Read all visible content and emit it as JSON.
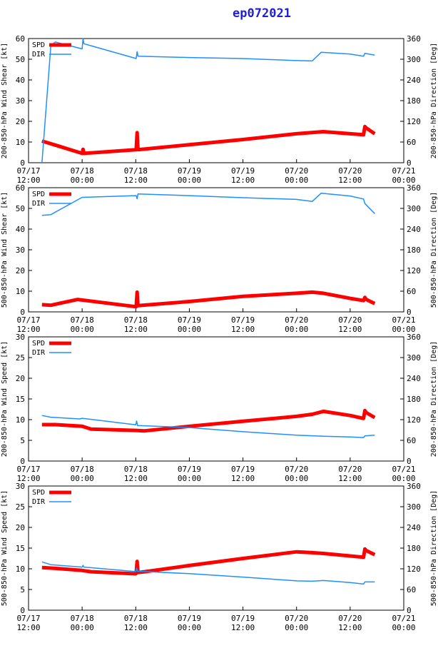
{
  "title": "ep072021",
  "colors": {
    "spd": "#ff0000",
    "dir": "#1e90ff",
    "title": "#1f1fd6",
    "axis": "#000000"
  },
  "x_ticks": [
    {
      "t": 0,
      "day": "07/17",
      "time": "12:00"
    },
    {
      "t": 12,
      "day": "07/18",
      "time": "00:00"
    },
    {
      "t": 24,
      "day": "07/18",
      "time": "12:00"
    },
    {
      "t": 36,
      "day": "07/19",
      "time": "00:00"
    },
    {
      "t": 48,
      "day": "07/19",
      "time": "12:00"
    },
    {
      "t": 60,
      "day": "07/20",
      "time": "00:00"
    },
    {
      "t": 72,
      "day": "07/20",
      "time": "12:00"
    },
    {
      "t": 84,
      "day": "07/21",
      "time": "00:00"
    }
  ],
  "legend": {
    "spd": "SPD",
    "dir": "DIR"
  },
  "chart_data": [
    {
      "type": "line",
      "x_unit": "hours since 07/17 12:00",
      "xlim": [
        0,
        84
      ],
      "ylabel": "200-850-hPa Wind Shear [kt]",
      "ylim": [
        0,
        60
      ],
      "yticks": [
        0,
        10,
        20,
        30,
        40,
        50,
        60
      ],
      "y2label": "200-850-hPa Direction [Deg]",
      "y2lim": [
        0,
        360
      ],
      "y2ticks": [
        0,
        60,
        120,
        180,
        240,
        300,
        360
      ],
      "series": [
        {
          "name": "SPD",
          "axis": "left",
          "x": [
            3,
            6,
            12,
            12.2,
            12.4,
            24.1,
            24.3,
            24.5,
            36,
            48,
            60,
            66,
            72,
            75,
            75.3,
            75.6,
            77.5
          ],
          "values": [
            10.5,
            8.5,
            4.5,
            6.5,
            4.5,
            6.3,
            14.5,
            6.3,
            8.7,
            11.2,
            14,
            15,
            14,
            13.5,
            17.5,
            16.8,
            14
          ]
        },
        {
          "name": "DIR",
          "axis": "right",
          "x": [
            3,
            5,
            6,
            12,
            12.2,
            12.4,
            24.1,
            24.3,
            24.5,
            36,
            48,
            60,
            63.5,
            65.5,
            72,
            75,
            75.3,
            77.5
          ],
          "values": [
            0,
            340,
            350,
            330,
            360,
            345,
            302,
            322,
            309,
            305,
            302,
            296,
            295,
            320,
            315,
            309,
            317,
            312
          ]
        }
      ]
    },
    {
      "type": "line",
      "x_unit": "hours since 07/17 12:00",
      "xlim": [
        0,
        84
      ],
      "ylabel": "500-850-hPa Wind Shear [kt]",
      "ylim": [
        0,
        60
      ],
      "yticks": [
        0,
        10,
        20,
        30,
        40,
        50,
        60
      ],
      "y2label": "500-850-hPa Direction [Deg]",
      "y2lim": [
        0,
        360
      ],
      "y2ticks": [
        0,
        60,
        120,
        180,
        240,
        300,
        360
      ],
      "series": [
        {
          "name": "SPD",
          "axis": "left",
          "x": [
            3,
            5,
            11,
            24.1,
            24.3,
            24.5,
            36,
            48,
            60,
            63.5,
            66,
            72,
            75,
            75.3,
            75.6,
            77.5
          ],
          "values": [
            3.5,
            3.2,
            6,
            2.5,
            9.5,
            3,
            5,
            7.5,
            9,
            9.5,
            9,
            6.5,
            5.5,
            7,
            6,
            4
          ]
        },
        {
          "name": "DIR",
          "axis": "right",
          "x": [
            3,
            5,
            12,
            24.1,
            24.3,
            24.5,
            36,
            48,
            60,
            63.5,
            65.5,
            72,
            75,
            75.3,
            77.5
          ],
          "values": [
            280,
            282,
            332,
            337,
            328,
            342,
            337,
            331,
            326,
            320,
            344,
            336,
            327,
            314,
            285
          ]
        }
      ]
    },
    {
      "type": "line",
      "x_unit": "hours since 07/17 12:00",
      "xlim": [
        0,
        84
      ],
      "ylabel": "200-850-hPa Wind Speed [kt]",
      "ylim": [
        0,
        30
      ],
      "yticks": [
        0,
        5,
        10,
        15,
        20,
        25,
        30
      ],
      "y2label": "200-850-hPa Direction [Deg]",
      "y2lim": [
        0,
        360
      ],
      "y2ticks": [
        0,
        60,
        120,
        180,
        240,
        300,
        360
      ],
      "series": [
        {
          "name": "SPD",
          "axis": "left",
          "x": [
            3,
            6,
            12,
            14,
            24,
            26,
            36,
            48,
            60,
            63.5,
            66,
            72,
            75,
            75.3,
            75.6,
            77.5
          ],
          "values": [
            8.8,
            8.8,
            8.4,
            7.7,
            7.4,
            7.3,
            8.4,
            9.6,
            10.8,
            11.3,
            12,
            11,
            10.3,
            12.2,
            11.7,
            10.5
          ]
        },
        {
          "name": "DIR",
          "axis": "right",
          "x": [
            3,
            5,
            11.5,
            12,
            24,
            24.2,
            24.4,
            36,
            48,
            60,
            66,
            72,
            75,
            75.3,
            77.5
          ],
          "values": [
            132,
            127,
            122,
            124,
            105,
            116,
            103,
            97,
            85,
            75,
            72,
            70,
            68,
            73,
            75
          ]
        }
      ]
    },
    {
      "type": "line",
      "x_unit": "hours since 07/17 12:00",
      "xlim": [
        0,
        84
      ],
      "ylabel": "500-850-hPa Wind Speed [kt]",
      "ylim": [
        0,
        30
      ],
      "yticks": [
        0,
        5,
        10,
        15,
        20,
        25,
        30
      ],
      "y2label": "500-850-hPa Direction [Deg]",
      "y2lim": [
        0,
        360
      ],
      "y2ticks": [
        0,
        60,
        120,
        180,
        240,
        300,
        360
      ],
      "series": [
        {
          "name": "SPD",
          "axis": "left",
          "x": [
            3,
            6,
            12,
            14,
            24,
            24.1,
            24.3,
            24.5,
            26,
            36,
            48,
            60,
            63.5,
            66,
            72,
            75,
            75.3,
            75.6,
            77.5
          ],
          "values": [
            10.3,
            10.1,
            9.6,
            9.3,
            8.8,
            9,
            11.8,
            9.1,
            9.3,
            10.8,
            12.5,
            14.1,
            13.9,
            13.7,
            13.1,
            12.8,
            14.8,
            14.4,
            13.4
          ]
        },
        {
          "name": "DIR",
          "axis": "right",
          "x": [
            3,
            5,
            12,
            12.2,
            12.4,
            24,
            24.2,
            24.4,
            36,
            48,
            60,
            63.5,
            66,
            72,
            75,
            75.3,
            77.5
          ],
          "values": [
            140,
            132,
            125,
            130,
            125,
            112,
            122,
            113,
            106,
            96,
            85,
            84,
            86,
            80,
            76,
            82,
            82
          ]
        }
      ]
    }
  ]
}
